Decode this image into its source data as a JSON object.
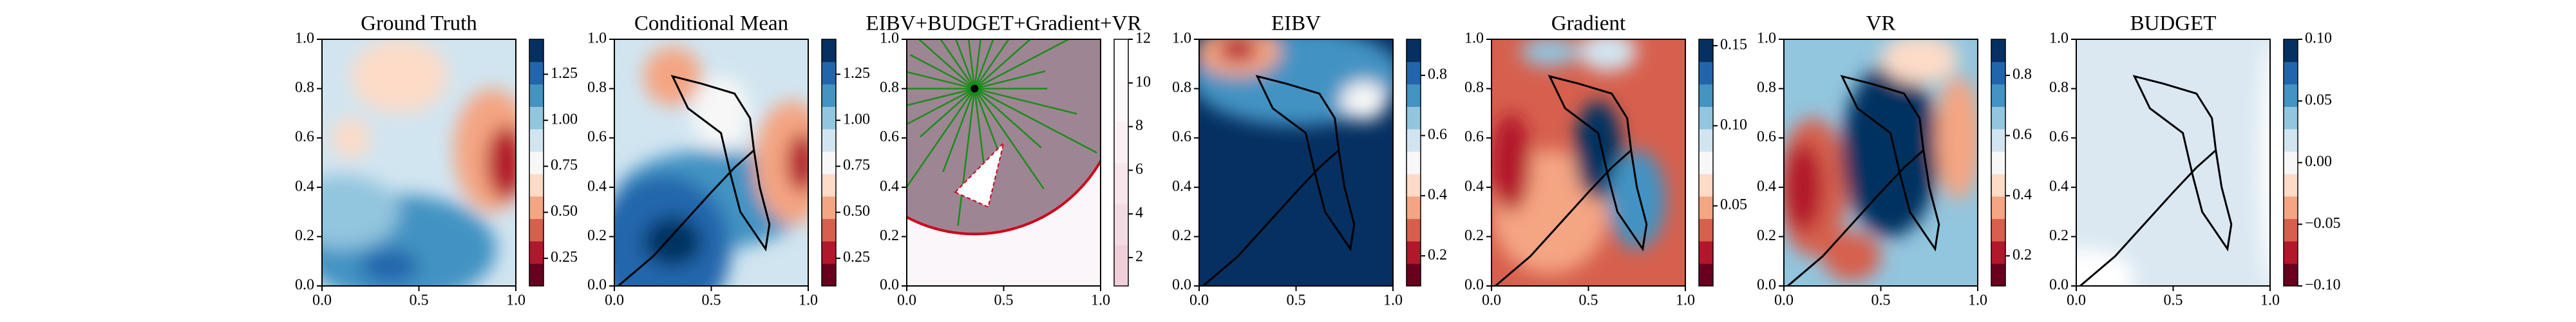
{
  "chart_data": [
    {
      "type": "heatmap",
      "title": "Ground Truth",
      "xlim": [
        0,
        1
      ],
      "ylim": [
        0,
        1
      ],
      "xticks": [
        {
          "value": 0,
          "label": "0.0"
        },
        {
          "value": 0.5,
          "label": "0.5"
        },
        {
          "value": 1,
          "label": "1.0"
        }
      ],
      "yticks": [
        {
          "value": 0,
          "label": "0.0"
        },
        {
          "value": 0.2,
          "label": "0.2"
        },
        {
          "value": 0.4,
          "label": "0.4"
        },
        {
          "value": 0.6,
          "label": "0.6"
        },
        {
          "value": 0.8,
          "label": "0.8"
        },
        {
          "value": 1,
          "label": "1.0"
        }
      ],
      "clim": [
        0.1,
        1.44
      ],
      "cticks": [
        0.25,
        {
          "value": 0.5,
          "label": "0.50"
        },
        0.75,
        {
          "value": 1,
          "label": "1.00"
        },
        1.25
      ],
      "colors": [
        "#67001f",
        "#b2182b",
        "#d6604d",
        "#f4a582",
        "#fddbc7",
        "#f7f7f7",
        "#d1e5f0",
        "#92c5de",
        "#4393c3",
        "#2166ac",
        "#053061"
      ]
    },
    {
      "type": "heatmap",
      "title": "Conditional Mean",
      "xlim": [
        0,
        1
      ],
      "ylim": [
        0,
        1
      ],
      "xticks": [
        {
          "value": 0,
          "label": "0.0"
        },
        {
          "value": 0.5,
          "label": "0.5"
        },
        {
          "value": 1,
          "label": "1.0"
        }
      ],
      "yticks": [
        {
          "value": 0,
          "label": "0.0"
        },
        {
          "value": 0.2,
          "label": "0.2"
        },
        {
          "value": 0.4,
          "label": "0.4"
        },
        {
          "value": 0.6,
          "label": "0.6"
        },
        {
          "value": 0.8,
          "label": "0.8"
        },
        {
          "value": 1,
          "label": "1.0"
        }
      ],
      "clim": [
        0.1,
        1.44
      ],
      "cticks": [
        0.25,
        {
          "value": 0.5,
          "label": "0.50"
        },
        0.75,
        {
          "value": 1,
          "label": "1.00"
        },
        1.25
      ],
      "colors": [
        "#67001f",
        "#b2182b",
        "#d6604d",
        "#f4a582",
        "#fddbc7",
        "#f7f7f7",
        "#d1e5f0",
        "#92c5de",
        "#4393c3",
        "#2166ac",
        "#053061"
      ]
    },
    {
      "type": "heatmap",
      "title": "EIBV+BUDGET+Gradient+VR",
      "xlim": [
        0,
        1
      ],
      "ylim": [
        0,
        1
      ],
      "xticks": [
        {
          "value": 0,
          "label": "0.0"
        },
        {
          "value": 0.5,
          "label": "0.5"
        },
        {
          "value": 1,
          "label": "1.0"
        }
      ],
      "yticks": [
        {
          "value": 0,
          "label": "0.0"
        },
        {
          "value": 0.2,
          "label": "0.2"
        },
        {
          "value": 0.4,
          "label": "0.4"
        },
        {
          "value": 0.6,
          "label": "0.6"
        },
        {
          "value": 0.8,
          "label": "0.8"
        },
        {
          "value": 1,
          "label": "1.0"
        }
      ],
      "clim": [
        0.7,
        12
      ],
      "cticks": [
        2,
        4,
        6,
        8,
        10,
        12
      ],
      "colors": [
        "#f1cfd9",
        "#f4dbe3",
        "#f7e6ec",
        "#faf0f4",
        "#fcf7f9",
        "#fefcfd"
      ]
    },
    {
      "type": "heatmap",
      "title": "EIBV",
      "xlim": [
        0,
        1
      ],
      "ylim": [
        0,
        1
      ],
      "xticks": [
        {
          "value": 0,
          "label": "0.0"
        },
        {
          "value": 0.5,
          "label": "0.5"
        },
        {
          "value": 1,
          "label": "1.0"
        }
      ],
      "yticks": [
        {
          "value": 0,
          "label": "0.0"
        },
        {
          "value": 0.2,
          "label": "0.2"
        },
        {
          "value": 0.4,
          "label": "0.4"
        },
        {
          "value": 0.6,
          "label": "0.6"
        },
        {
          "value": 0.8,
          "label": "0.8"
        },
        {
          "value": 1,
          "label": "1.0"
        }
      ],
      "clim": [
        0.1,
        0.92
      ],
      "cticks": [
        0.2,
        0.4,
        0.6,
        0.8
      ],
      "colors": [
        "#67001f",
        "#b2182b",
        "#d6604d",
        "#f4a582",
        "#fddbc7",
        "#f7f7f7",
        "#d1e5f0",
        "#92c5de",
        "#4393c3",
        "#2166ac",
        "#053061"
      ]
    },
    {
      "type": "heatmap",
      "title": "Gradient",
      "xlim": [
        0,
        1
      ],
      "ylim": [
        0,
        1
      ],
      "xticks": [
        {
          "value": 0,
          "label": "0.0"
        },
        {
          "value": 0.5,
          "label": "0.5"
        },
        {
          "value": 1,
          "label": "1.0"
        }
      ],
      "yticks": [
        {
          "value": 0,
          "label": "0.0"
        },
        {
          "value": 0.2,
          "label": "0.2"
        },
        {
          "value": 0.4,
          "label": "0.4"
        },
        {
          "value": 0.6,
          "label": "0.6"
        },
        {
          "value": 0.8,
          "label": "0.8"
        },
        {
          "value": 1,
          "label": "1.0"
        }
      ],
      "clim": [
        0,
        0.154
      ],
      "cticks": [
        0.05,
        {
          "value": 0.1,
          "label": "0.10"
        },
        0.15
      ],
      "colors": [
        "#67001f",
        "#b2182b",
        "#d6604d",
        "#f4a582",
        "#fddbc7",
        "#f7f7f7",
        "#d1e5f0",
        "#92c5de",
        "#4393c3",
        "#2166ac",
        "#053061"
      ]
    },
    {
      "type": "heatmap",
      "title": "VR",
      "xlim": [
        0,
        1
      ],
      "ylim": [
        0,
        1
      ],
      "xticks": [
        {
          "value": 0,
          "label": "0.0"
        },
        {
          "value": 0.5,
          "label": "0.5"
        },
        {
          "value": 1,
          "label": "1.0"
        }
      ],
      "yticks": [
        {
          "value": 0,
          "label": "0.0"
        },
        {
          "value": 0.2,
          "label": "0.2"
        },
        {
          "value": 0.4,
          "label": "0.4"
        },
        {
          "value": 0.6,
          "label": "0.6"
        },
        {
          "value": 0.8,
          "label": "0.8"
        },
        {
          "value": 1,
          "label": "1.0"
        }
      ],
      "clim": [
        0.1,
        0.92
      ],
      "cticks": [
        0.2,
        0.4,
        0.6,
        0.8
      ],
      "colors": [
        "#67001f",
        "#b2182b",
        "#d6604d",
        "#f4a582",
        "#fddbc7",
        "#f7f7f7",
        "#d1e5f0",
        "#92c5de",
        "#4393c3",
        "#2166ac",
        "#053061"
      ]
    },
    {
      "type": "heatmap",
      "title": "BUDGET",
      "xlim": [
        0,
        1
      ],
      "ylim": [
        0,
        1
      ],
      "xticks": [
        {
          "value": 0,
          "label": "0.0"
        },
        {
          "value": 0.5,
          "label": "0.5"
        },
        {
          "value": 1,
          "label": "1.0"
        }
      ],
      "yticks": [
        {
          "value": 0,
          "label": "0.0"
        },
        {
          "value": 0.2,
          "label": "0.2"
        },
        {
          "value": 0.4,
          "label": "0.4"
        },
        {
          "value": 0.6,
          "label": "0.6"
        },
        {
          "value": 0.8,
          "label": "0.8"
        },
        {
          "value": 1,
          "label": "1.0"
        }
      ],
      "clim": [
        -0.1,
        0.1
      ],
      "cticks": [
        {
          "value": -0.1,
          "label": "−0.10"
        },
        {
          "value": -0.05,
          "label": "−0.05"
        },
        {
          "value": 0,
          "label": "0.00"
        },
        {
          "value": 0.05,
          "label": "0.05"
        },
        {
          "value": 0.1,
          "label": "0.10"
        }
      ],
      "colors": [
        "#67001f",
        "#b2182b",
        "#d6604d",
        "#f4a582",
        "#fddbc7",
        "#f7f7f7",
        "#d1e5f0",
        "#92c5de",
        "#4393c3",
        "#2166ac",
        "#053061"
      ]
    }
  ]
}
